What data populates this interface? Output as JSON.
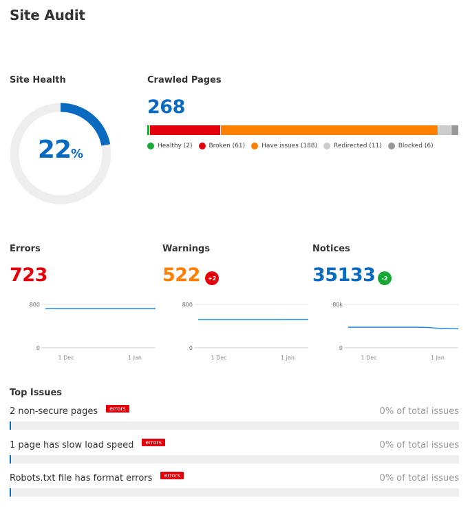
{
  "page_title": "Site Audit",
  "site_health": {
    "title": "Site Health",
    "value": "22",
    "unit": "%",
    "percent": 22,
    "color": "#0a6abf"
  },
  "crawled": {
    "title": "Crawled Pages",
    "total": "268",
    "segments": [
      {
        "label": "Healthy (2)",
        "count": 2,
        "color": "#18a837"
      },
      {
        "label": "Broken (61)",
        "count": 61,
        "color": "#e4000a"
      },
      {
        "label": "Have issues (188)",
        "count": 188,
        "color": "#ff7f00"
      },
      {
        "label": "Redirected (11)",
        "count": 11,
        "color": "#cccccc"
      },
      {
        "label": "Blocked (6)",
        "count": 6,
        "color": "#999999"
      }
    ]
  },
  "metrics": [
    {
      "title": "Errors",
      "value": "723",
      "color": "#e4000a",
      "badge": "",
      "badge_color": "",
      "y_max_label": "800",
      "y_min_label": "0",
      "x_labels": [
        "1 Dec",
        "1 Jan"
      ],
      "series_max": 800,
      "series": [
        723,
        723,
        723,
        722,
        722,
        723,
        723,
        723,
        723,
        723,
        723,
        723
      ]
    },
    {
      "title": "Warnings",
      "value": "522",
      "color": "#ff7f00",
      "badge": "+2",
      "badge_color": "#e4000a",
      "y_max_label": "800",
      "y_min_label": "0",
      "x_labels": [
        "1 Dec",
        "1 Jan"
      ],
      "series_max": 800,
      "series": [
        520,
        520,
        520,
        520,
        521,
        521,
        521,
        521,
        521,
        522,
        522,
        522
      ]
    },
    {
      "title": "Notices",
      "value": "35133",
      "color": "#0a6abf",
      "badge": "-2",
      "badge_color": "#18a837",
      "y_max_label": "80k",
      "y_min_label": "0",
      "x_labels": [
        "1 Dec",
        "1 Jan"
      ],
      "series_max": 80000,
      "series": [
        38000,
        38000,
        38000,
        38000,
        38000,
        38000,
        38000,
        38000,
        37500,
        36000,
        35200,
        35133
      ]
    }
  ],
  "top_issues": {
    "title": "Top Issues",
    "items": [
      {
        "title": "2 non-secure pages",
        "tag": "errors",
        "pct": "0% of total issues"
      },
      {
        "title": "1 page has slow load speed",
        "tag": "errors",
        "pct": "0% of total issues"
      },
      {
        "title": "Robots.txt file has format errors",
        "tag": "errors",
        "pct": "0% of total issues"
      }
    ]
  }
}
